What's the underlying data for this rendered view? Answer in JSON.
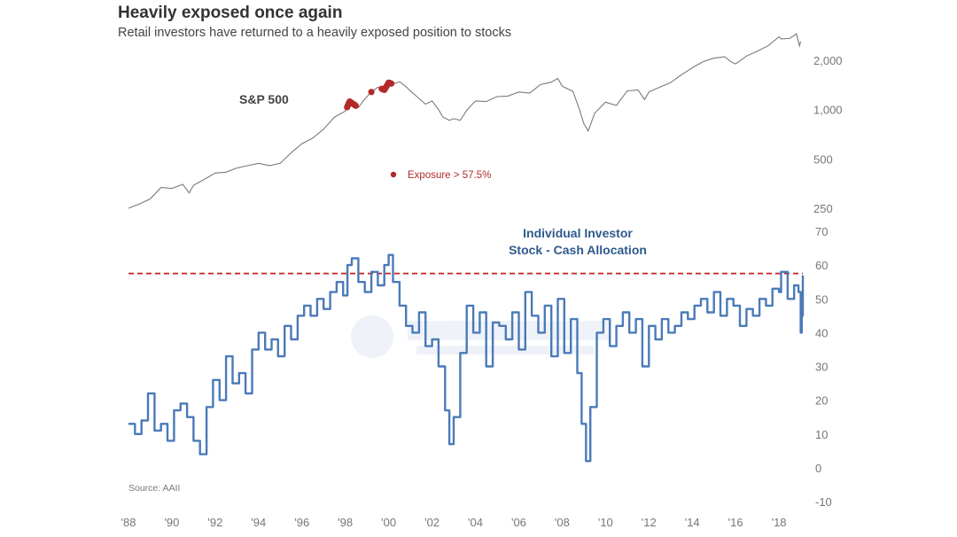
{
  "header": {
    "title": "Heavily exposed once again",
    "subtitle": "Retail investors have returned to a heavily exposed position to stocks"
  },
  "colors": {
    "sp_line": "#7a7a7a",
    "exposure_marker": "#b22a2a",
    "allocation_line": "#4a7ab8",
    "threshold_line": "#c42020"
  },
  "chart_data": [
    {
      "type": "line",
      "name": "S&P 500",
      "series_label": "S&P 500",
      "scale": "log",
      "y_ticks": [
        {
          "value": 250,
          "label": "250"
        },
        {
          "value": 500,
          "label": "500"
        },
        {
          "value": 1000,
          "label": "1,000"
        },
        {
          "value": 2000,
          "label": "2,000"
        }
      ],
      "ylim": [
        250,
        3000
      ],
      "x": [
        1988.0,
        1988.5,
        1989.0,
        1989.5,
        1990.0,
        1990.5,
        1990.8,
        1991.0,
        1991.5,
        1992.0,
        1992.5,
        1993.0,
        1993.5,
        1994.0,
        1994.5,
        1995.0,
        1995.5,
        1996.0,
        1996.5,
        1997.0,
        1997.5,
        1998.0,
        1998.2,
        1998.6,
        1998.9,
        1999.2,
        1999.5,
        1999.8,
        2000.0,
        2000.2,
        2000.5,
        2000.8,
        2001.0,
        2001.3,
        2001.7,
        2002.0,
        2002.3,
        2002.5,
        2002.8,
        2003.0,
        2003.3,
        2003.6,
        2004.0,
        2004.5,
        2005.0,
        2005.5,
        2006.0,
        2006.5,
        2007.0,
        2007.5,
        2007.8,
        2008.0,
        2008.5,
        2008.8,
        2009.0,
        2009.2,
        2009.5,
        2010.0,
        2010.5,
        2011.0,
        2011.5,
        2011.8,
        2012.0,
        2012.5,
        2013.0,
        2013.5,
        2014.0,
        2014.5,
        2015.0,
        2015.5,
        2015.8,
        2016.0,
        2016.5,
        2017.0,
        2017.5,
        2018.0,
        2018.1,
        2018.5,
        2018.8,
        2018.95,
        2019.0
      ],
      "values": [
        250,
        265,
        285,
        335,
        330,
        350,
        310,
        345,
        375,
        410,
        415,
        440,
        455,
        470,
        455,
        470,
        545,
        620,
        670,
        760,
        900,
        980,
        1120,
        1030,
        1160,
        1280,
        1370,
        1320,
        1460,
        1430,
        1480,
        1380,
        1300,
        1200,
        1080,
        1130,
        1000,
        900,
        860,
        880,
        860,
        990,
        1130,
        1120,
        1200,
        1210,
        1280,
        1260,
        1420,
        1470,
        1550,
        1390,
        1290,
        1000,
        820,
        740,
        950,
        1110,
        1060,
        1300,
        1320,
        1150,
        1280,
        1370,
        1460,
        1630,
        1800,
        1960,
        2060,
        2100,
        1950,
        1900,
        2120,
        2270,
        2450,
        2780,
        2700,
        2720,
        2900,
        2450,
        2600
      ]
    },
    {
      "type": "line",
      "name": "Individual Investor Stock - Cash Allocation",
      "title_lines": [
        "Individual Investor",
        "Stock - Cash Allocation"
      ],
      "threshold": 57.5,
      "legend": "Exposure > 57.5%",
      "x_tick_labels": [
        "'88",
        "'90",
        "'92",
        "'94",
        "'96",
        "'98",
        "'00",
        "'02",
        "'04",
        "'06",
        "'08",
        "'10",
        "'12",
        "'14",
        "'16",
        "'18"
      ],
      "y_ticks": [
        -10,
        0,
        10,
        20,
        30,
        40,
        50,
        60,
        70
      ],
      "ylim": [
        -10,
        70
      ],
      "xlim": [
        1988.0,
        2019.1
      ],
      "source": "Source: AAII",
      "x": [
        1988.0,
        1988.3,
        1988.6,
        1988.9,
        1989.2,
        1989.5,
        1989.8,
        1990.1,
        1990.4,
        1990.7,
        1991.0,
        1991.3,
        1991.6,
        1991.9,
        1992.2,
        1992.5,
        1992.8,
        1993.1,
        1993.4,
        1993.7,
        1994.0,
        1994.3,
        1994.6,
        1994.9,
        1995.2,
        1995.5,
        1995.8,
        1996.1,
        1996.4,
        1996.7,
        1997.0,
        1997.3,
        1997.6,
        1997.9,
        1998.1,
        1998.3,
        1998.6,
        1998.9,
        1999.2,
        1999.5,
        1999.8,
        2000.0,
        2000.2,
        2000.5,
        2000.8,
        2001.1,
        2001.4,
        2001.7,
        2002.0,
        2002.3,
        2002.6,
        2002.8,
        2003.0,
        2003.3,
        2003.6,
        2003.9,
        2004.2,
        2004.5,
        2004.8,
        2005.1,
        2005.4,
        2005.7,
        2006.0,
        2006.3,
        2006.6,
        2006.9,
        2007.2,
        2007.5,
        2007.8,
        2008.1,
        2008.4,
        2008.7,
        2008.9,
        2009.1,
        2009.3,
        2009.6,
        2009.9,
        2010.2,
        2010.5,
        2010.8,
        2011.1,
        2011.4,
        2011.7,
        2012.0,
        2012.3,
        2012.6,
        2012.9,
        2013.2,
        2013.5,
        2013.8,
        2014.1,
        2014.4,
        2014.7,
        2015.0,
        2015.3,
        2015.6,
        2015.9,
        2016.2,
        2016.5,
        2016.8,
        2017.1,
        2017.4,
        2017.7,
        2018.0,
        2018.1,
        2018.4,
        2018.7,
        2018.9,
        2019.0,
        2019.05,
        2019.1
      ],
      "values": [
        13,
        10,
        14,
        22,
        11,
        13,
        8,
        17,
        19,
        15,
        8,
        4,
        18,
        26,
        20,
        33,
        25,
        28,
        22,
        35,
        40,
        35,
        38,
        33,
        42,
        38,
        45,
        48,
        45,
        50,
        47,
        52,
        55,
        51,
        60,
        62,
        55,
        52,
        58,
        54,
        60,
        63,
        55,
        48,
        42,
        40,
        46,
        36,
        38,
        30,
        17,
        7,
        15,
        34,
        48,
        40,
        46,
        30,
        43,
        42,
        38,
        46,
        35,
        52,
        45,
        40,
        48,
        33,
        50,
        34,
        44,
        28,
        13,
        2,
        18,
        40,
        44,
        36,
        42,
        46,
        40,
        44,
        30,
        42,
        38,
        44,
        40,
        42,
        46,
        44,
        48,
        50,
        46,
        52,
        45,
        50,
        48,
        42,
        47,
        45,
        50,
        48,
        53,
        52,
        58,
        50,
        54,
        52,
        40,
        45,
        57
      ]
    }
  ]
}
